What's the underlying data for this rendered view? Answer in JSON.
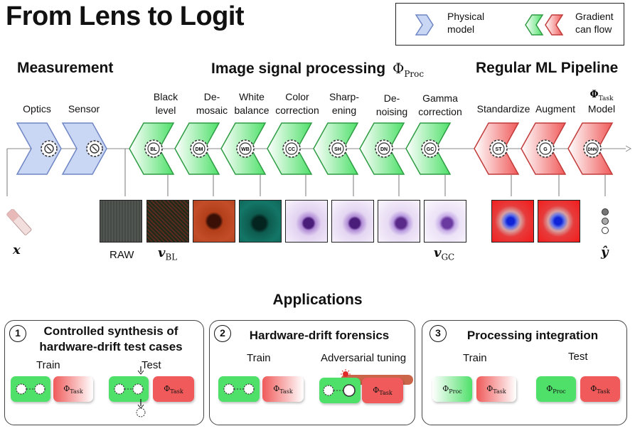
{
  "title": "From Lens to Logit",
  "legend": {
    "physical_label": "Physical\nmodel",
    "gradient_label": "Gradient\ncan flow",
    "colors": {
      "physical": "#c9d6f4",
      "gradient_green": "#4fe06a",
      "gradient_red": "#f05a5a"
    }
  },
  "sections": {
    "measurement": "Measurement",
    "isp": "Image signal processing",
    "isp_symbol": "Φ",
    "isp_sub": "Proc",
    "ml": "Regular ML Pipeline"
  },
  "stages": [
    {
      "label": "Optics",
      "code": "",
      "kind": "physical"
    },
    {
      "label": "Sensor",
      "code": "",
      "kind": "physical"
    },
    {
      "label": "Black\nlevel",
      "code": "BL",
      "kind": "isp"
    },
    {
      "label": "De-\nmosaic",
      "code": "DM",
      "kind": "isp"
    },
    {
      "label": "White\nbalance",
      "code": "WB",
      "kind": "isp"
    },
    {
      "label": "Color\ncorrection",
      "code": "CC",
      "kind": "isp"
    },
    {
      "label": "Sharp-\nening",
      "code": "SH",
      "kind": "isp"
    },
    {
      "label": "De-\nnoising",
      "code": "DN",
      "kind": "isp"
    },
    {
      "label": "Gamma\ncorrection",
      "code": "GC",
      "kind": "isp"
    },
    {
      "label": "Standardize",
      "code": "ST",
      "kind": "ml"
    },
    {
      "label": "Augment",
      "code": "G",
      "kind": "ml"
    },
    {
      "label": "Model",
      "code": "DNN",
      "kind": "ml",
      "symbol": "Φ",
      "symbol_sub": "Task"
    }
  ],
  "annotations": {
    "x": "x",
    "raw": "RAW",
    "v_bl": "v",
    "v_bl_sub": "BL",
    "v_gc": "v",
    "v_gc_sub": "GC",
    "y_hat": "ŷ"
  },
  "applications": {
    "heading": "Applications",
    "boxes": [
      {
        "number": "1",
        "title": "Controlled synthesis of\nhardware-drift test cases",
        "left_label": "Train",
        "right_label": "Test"
      },
      {
        "number": "2",
        "title": "Hardware-drift forensics",
        "left_label": "Train",
        "right_label": "Adversarial tuning"
      },
      {
        "number": "3",
        "title": "Processing integration",
        "left_label": "Train",
        "right_label": "Test"
      }
    ],
    "phi_task": "Φ",
    "phi_task_sub": "Task",
    "phi_proc": "Φ",
    "phi_proc_sub": "Proc"
  }
}
